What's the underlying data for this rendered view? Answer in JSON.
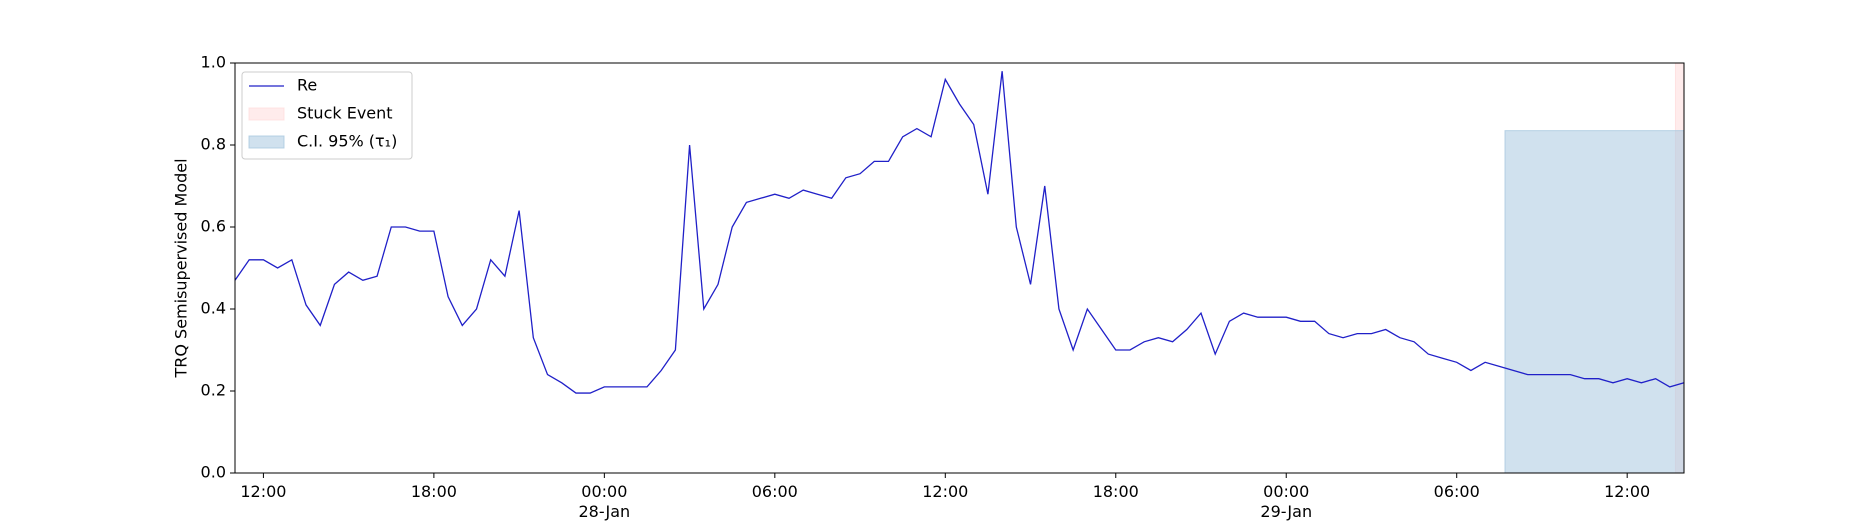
{
  "chart_data": {
    "type": "line",
    "ylabel": "TRQ Semisupervised Model",
    "x": [
      "1999-01-27T11:00",
      "1999-01-27T11:30",
      "1999-01-27T12:00",
      "1999-01-27T12:30",
      "1999-01-27T13:00",
      "1999-01-27T13:30",
      "1999-01-27T14:00",
      "1999-01-27T14:30",
      "1999-01-27T15:00",
      "1999-01-27T15:30",
      "1999-01-27T16:00",
      "1999-01-27T16:30",
      "1999-01-27T17:00",
      "1999-01-27T17:30",
      "1999-01-27T18:00",
      "1999-01-27T18:30",
      "1999-01-27T19:00",
      "1999-01-27T19:30",
      "1999-01-27T20:00",
      "1999-01-27T20:30",
      "1999-01-27T21:00",
      "1999-01-27T21:30",
      "1999-01-27T22:00",
      "1999-01-27T22:30",
      "1999-01-27T23:00",
      "1999-01-27T23:30",
      "1999-01-28T00:00",
      "1999-01-28T00:30",
      "1999-01-28T01:00",
      "1999-01-28T01:30",
      "1999-01-28T02:00",
      "1999-01-28T02:30",
      "1999-01-28T03:00",
      "1999-01-28T03:30",
      "1999-01-28T04:00",
      "1999-01-28T04:30",
      "1999-01-28T05:00",
      "1999-01-28T05:30",
      "1999-01-28T06:00",
      "1999-01-28T06:30",
      "1999-01-28T07:00",
      "1999-01-28T07:30",
      "1999-01-28T08:00",
      "1999-01-28T08:30",
      "1999-01-28T09:00",
      "1999-01-28T09:30",
      "1999-01-28T10:00",
      "1999-01-28T10:30",
      "1999-01-28T11:00",
      "1999-01-28T11:30",
      "1999-01-28T12:00",
      "1999-01-28T12:30",
      "1999-01-28T13:00",
      "1999-01-28T13:30",
      "1999-01-28T14:00",
      "1999-01-28T14:30",
      "1999-01-28T15:00",
      "1999-01-28T15:30",
      "1999-01-28T16:00",
      "1999-01-28T16:30",
      "1999-01-28T17:00",
      "1999-01-28T17:30",
      "1999-01-28T18:00",
      "1999-01-28T18:30",
      "1999-01-28T19:00",
      "1999-01-28T19:30",
      "1999-01-28T20:00",
      "1999-01-28T20:30",
      "1999-01-28T21:00",
      "1999-01-28T21:30",
      "1999-01-28T22:00",
      "1999-01-28T22:30",
      "1999-01-28T23:00",
      "1999-01-28T23:30",
      "1999-01-29T00:00",
      "1999-01-29T00:30",
      "1999-01-29T01:00",
      "1999-01-29T01:30",
      "1999-01-29T02:00",
      "1999-01-29T02:30",
      "1999-01-29T03:00",
      "1999-01-29T03:30",
      "1999-01-29T04:00",
      "1999-01-29T04:30",
      "1999-01-29T05:00",
      "1999-01-29T05:30",
      "1999-01-29T06:00",
      "1999-01-29T06:30",
      "1999-01-29T07:00",
      "1999-01-29T07:30",
      "1999-01-29T08:00",
      "1999-01-29T08:30",
      "1999-01-29T09:00",
      "1999-01-29T09:30",
      "1999-01-29T10:00",
      "1999-01-29T10:30",
      "1999-01-29T11:00",
      "1999-01-29T11:30",
      "1999-01-29T12:00",
      "1999-01-29T12:30",
      "1999-01-29T13:00",
      "1999-01-29T13:30",
      "1999-01-29T14:00"
    ],
    "series": [
      {
        "name": "Re",
        "color": "#2020c8",
        "values": [
          0.47,
          0.52,
          0.52,
          0.5,
          0.52,
          0.41,
          0.36,
          0.46,
          0.49,
          0.47,
          0.48,
          0.6,
          0.6,
          0.59,
          0.59,
          0.43,
          0.36,
          0.4,
          0.52,
          0.48,
          0.64,
          0.33,
          0.24,
          0.22,
          0.195,
          0.195,
          0.21,
          0.21,
          0.21,
          0.21,
          0.25,
          0.3,
          0.8,
          0.4,
          0.46,
          0.6,
          0.66,
          0.67,
          0.68,
          0.67,
          0.69,
          0.68,
          0.67,
          0.72,
          0.73,
          0.76,
          0.76,
          0.82,
          0.84,
          0.82,
          0.96,
          0.9,
          0.85,
          0.68,
          0.98,
          0.6,
          0.46,
          0.7,
          0.4,
          0.3,
          0.4,
          0.35,
          0.3,
          0.3,
          0.32,
          0.33,
          0.32,
          0.35,
          0.39,
          0.29,
          0.37,
          0.39,
          0.38,
          0.38,
          0.38,
          0.37,
          0.37,
          0.34,
          0.33,
          0.34,
          0.34,
          0.35,
          0.33,
          0.32,
          0.29,
          0.28,
          0.27,
          0.25,
          0.27,
          0.26,
          0.25,
          0.24,
          0.24,
          0.24,
          0.24,
          0.23,
          0.23,
          0.22,
          0.23,
          0.22,
          0.23,
          0.21,
          0.22
        ]
      }
    ],
    "areas": [
      {
        "name": "Stuck Event",
        "color": "#ffdddd",
        "x": [
          "1999-01-29T13:42",
          "1999-01-29T14:00"
        ],
        "y": [
          0,
          1
        ]
      },
      {
        "name": "C.I. 95% (τ₁)",
        "color": "#a9c8e0",
        "x": [
          "1999-01-29T07:42",
          "1999-01-29T14:00"
        ],
        "y": [
          0,
          0.835
        ]
      }
    ],
    "xlim": [
      "1999-01-27T11:00",
      "1999-01-29T14:00"
    ],
    "xticks": [
      {
        "value": "1999-01-27T12:00",
        "label": "12:00"
      },
      {
        "value": "1999-01-27T18:00",
        "label": "18:00"
      },
      {
        "value": "1999-01-28T00:00",
        "label": "00:00\n28-Jan\n1999"
      },
      {
        "value": "1999-01-28T06:00",
        "label": "06:00"
      },
      {
        "value": "1999-01-28T12:00",
        "label": "12:00"
      },
      {
        "value": "1999-01-28T18:00",
        "label": "18:00"
      },
      {
        "value": "1999-01-29T00:00",
        "label": "00:00\n29-Jan"
      },
      {
        "value": "1999-01-29T06:00",
        "label": "06:00"
      },
      {
        "value": "1999-01-29T12:00",
        "label": "12:00"
      }
    ],
    "ylim": [
      0,
      1
    ],
    "yticks": [
      {
        "value": 0,
        "label": "0.0"
      },
      0.2,
      0.4,
      0.6,
      0.8,
      {
        "value": 1,
        "label": "1.0"
      }
    ],
    "legend": "upper left"
  }
}
